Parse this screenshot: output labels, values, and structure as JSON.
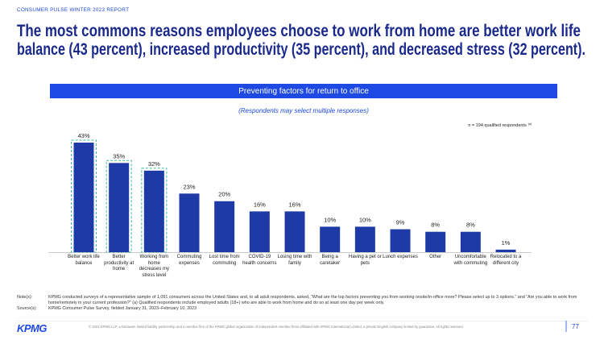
{
  "header": {
    "report": "CONSUMER PULSE WINTER 2023 REPORT",
    "title": [
      "The most commons reasons employees choose to work from home are better work life",
      "balance (43 percent), increased productivity (35 percent), and decreased stress (32 percent)."
    ]
  },
  "chart_data": {
    "type": "bar",
    "title": "Preventing factors for return to office",
    "subtitle": "(Respondents may select multiple responses)",
    "sample_note": "n = 194 qualified respondents",
    "sample_note_ref": "(a)",
    "categories": [
      "Better work life balance",
      "Better productivity at home",
      "Working from home decreases my stress level",
      "Commuting expenses",
      "Lost time from commuting",
      "COVID-19 health concerns",
      "Losing time with family",
      "Being a caretaker",
      "Having a pet or pets",
      "Lunch expenses",
      "Other",
      "Uncomfortable with commuting",
      "Relocated to a different city"
    ],
    "values": [
      43,
      35,
      32,
      23,
      20,
      16,
      16,
      10,
      10,
      9,
      8,
      8,
      1
    ],
    "value_labels": [
      "43%",
      "35%",
      "32%",
      "23%",
      "20%",
      "16%",
      "16%",
      "10%",
      "10%",
      "9%",
      "8%",
      "8%",
      "1%"
    ],
    "color": "#1d3aa6",
    "highlight_color": "#3fb8a0",
    "highlighted": [
      true,
      true,
      true,
      false,
      false,
      false,
      false,
      false,
      false,
      false,
      false,
      false,
      false
    ]
  },
  "notes": {
    "note_label": "Note(s):",
    "note": "KPMG conducted surveys of a representative sample of 1,091 consumers across the United States and, to all adult respondents, asked, “What are the top factors preventing you from working onsite/in-office more? Please select up to 3 options.” and “Are you able to work from home/remotely in your current profession?” (a) Qualified respondents include employed adults (18+) who are able to work from home and do so at least one day per week only.",
    "source_label": "Source(s):",
    "source": "KPMG Consumer Pulse Survey, fielded January 31, 2023–February 10, 2023"
  },
  "footer": {
    "logo": "KPMG",
    "copyright": "© 2023 KPMG LLP, a Delaware limited liability partnership and a member firm of the KPMG global organization of independent member firms affiliated with KPMG International Limited, a private English company limited by guarantee. All rights reserved.",
    "page": "77"
  }
}
